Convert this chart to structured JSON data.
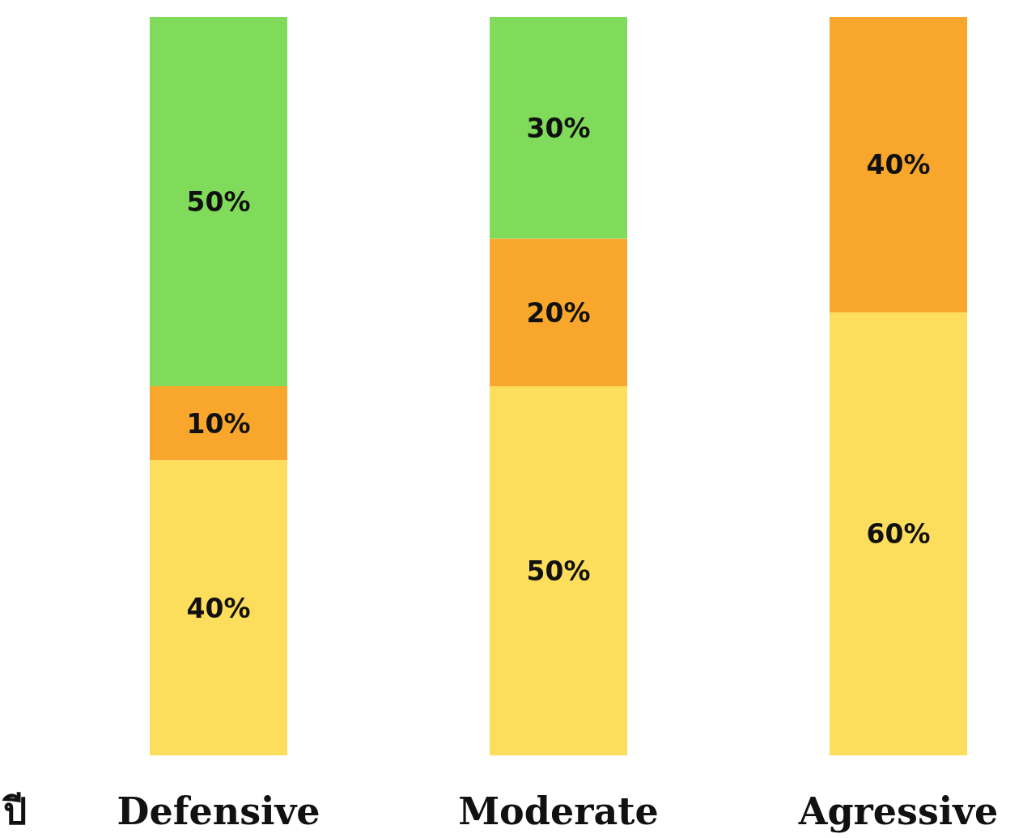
{
  "chart_data": {
    "type": "bar",
    "stacked": true,
    "categories": [
      "Defensive",
      "Moderate",
      "Agressive"
    ],
    "series": [
      {
        "color": "#fddd5c",
        "values": [
          40,
          50,
          60
        ],
        "value_labels": [
          "40%",
          "50%",
          "60%"
        ]
      },
      {
        "color": "#f8a72c",
        "values": [
          10,
          20,
          40
        ],
        "value_labels": [
          "10%",
          "20%",
          "40%"
        ]
      },
      {
        "color": "#80db5a",
        "values": [
          50,
          30,
          null
        ],
        "value_labels": [
          "50%",
          "30%",
          null
        ]
      }
    ],
    "annotations": [
      "ปี"
    ]
  }
}
